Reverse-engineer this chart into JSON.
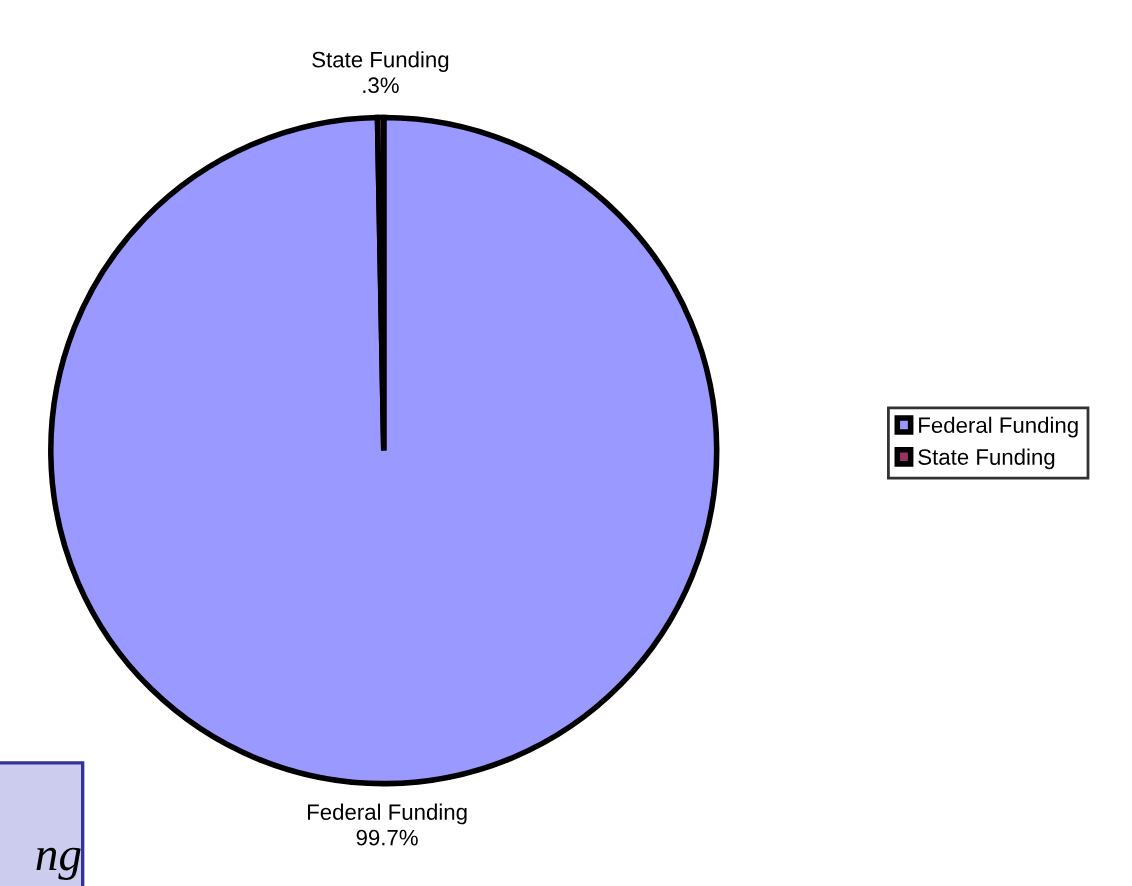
{
  "chart_data": {
    "type": "pie",
    "categories": [
      "Federal Funding",
      "State Funding"
    ],
    "values": [
      99.7,
      0.3
    ],
    "colors": [
      "#9999ff",
      "#993366"
    ],
    "value_labels": [
      "99.7%",
      ".3%"
    ],
    "legend": "right",
    "annotations": [
      "ng"
    ]
  }
}
